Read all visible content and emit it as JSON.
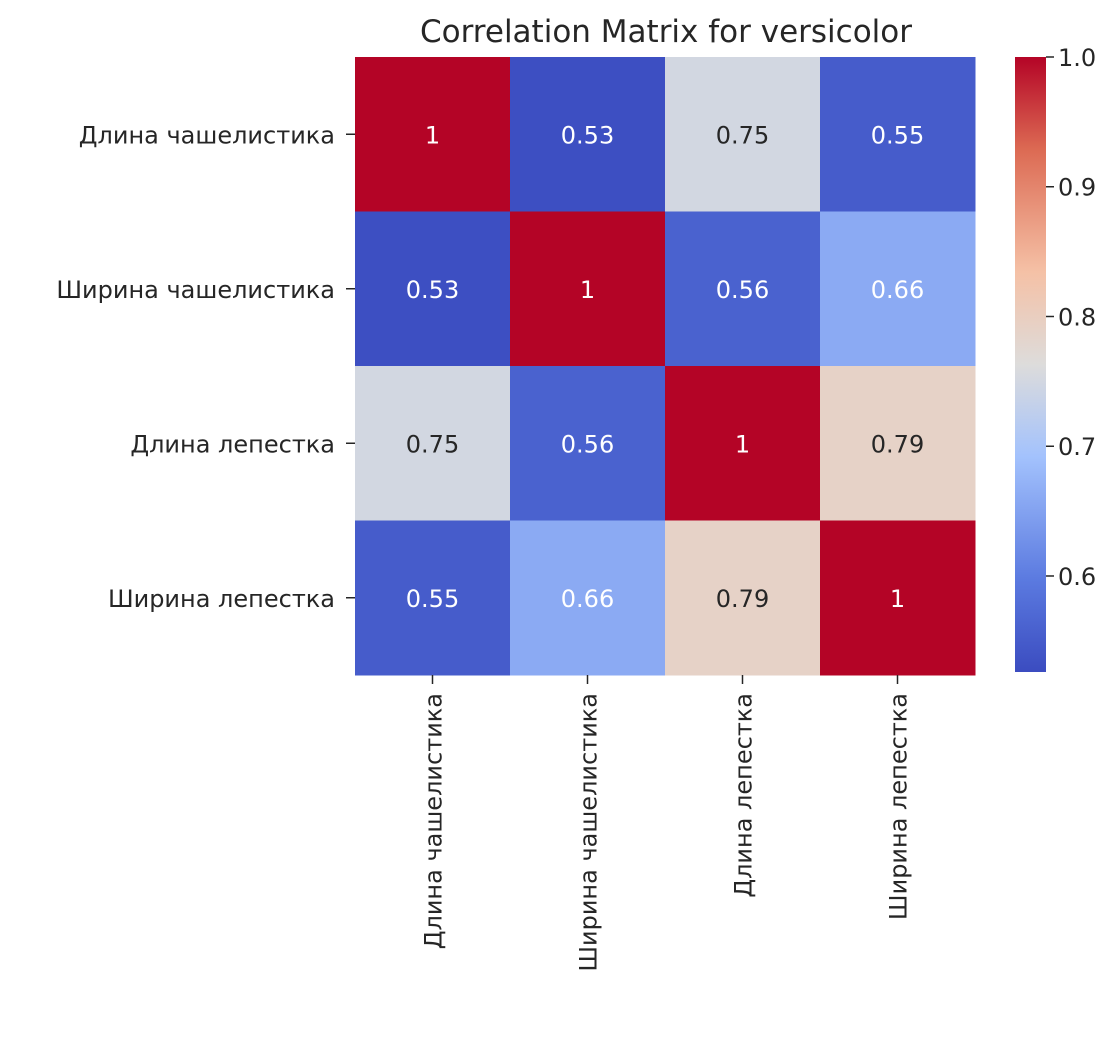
{
  "chart_data": {
    "type": "heatmap",
    "title": "Correlation Matrix for versicolor",
    "row_labels": [
      "Длина чашелистика",
      "Ширина чашелистика",
      "Длина лепестка",
      "Ширина лепестка"
    ],
    "col_labels": [
      "Длина чашелистика",
      "Ширина чашелистика",
      "Длина лепестка",
      "Ширина лепестка"
    ],
    "values": [
      [
        1.0,
        0.53,
        0.75,
        0.55
      ],
      [
        0.53,
        1.0,
        0.56,
        0.66
      ],
      [
        0.75,
        0.56,
        1.0,
        0.79
      ],
      [
        0.55,
        0.66,
        0.79,
        1.0
      ]
    ],
    "cell_labels": [
      [
        "1",
        "0.53",
        "0.75",
        "0.55"
      ],
      [
        "0.53",
        "1",
        "0.56",
        "0.66"
      ],
      [
        "0.75",
        "0.56",
        "1",
        "0.79"
      ],
      [
        "0.55",
        "0.66",
        "0.79",
        "1"
      ]
    ],
    "colormap": "coolwarm",
    "colorbar": {
      "range": [
        0.526,
        1.0
      ],
      "ticks": [
        0.6,
        0.7,
        0.8,
        0.9,
        1.0
      ],
      "tick_labels": [
        "0.6",
        "0.7",
        "0.8",
        "0.9",
        "1.0"
      ]
    }
  }
}
